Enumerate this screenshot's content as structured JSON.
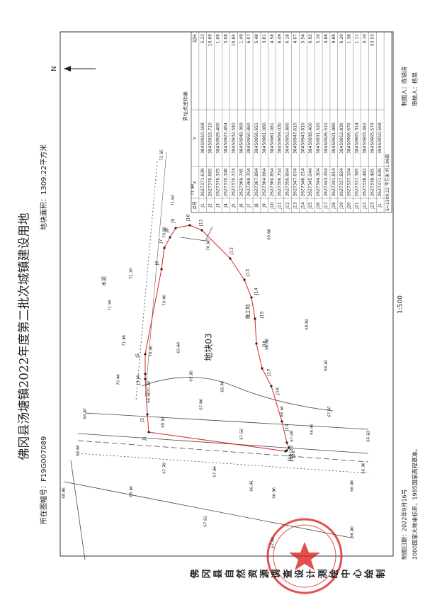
{
  "header": {
    "title": "佛冈县汤塘镇2022年度第二批次城镇建设用地",
    "sheet": "所在图幅号：F19G007089",
    "area": "地块面积：1309.22平方米",
    "scale": "1:500"
  },
  "table": {
    "title": "界址点坐标表",
    "columns": [
      "点号",
      "X",
      "Y",
      "边长"
    ],
    "rows": [
      [
        "J1",
        "2627371.639",
        "38450910.568",
        "5.23"
      ],
      [
        "J2",
        "2627370.665",
        "38450915.710",
        "10.69"
      ],
      [
        "J3",
        "2627370.375",
        "38450926.400",
        "1.06"
      ],
      [
        "J4",
        "2627370.346",
        "38450927.464",
        "5.08"
      ],
      [
        "J5",
        "2627370.374",
        "38450932.540",
        "16.84"
      ],
      [
        "J6",
        "2627369.745",
        "38450949.369",
        "1.49"
      ],
      [
        "J7",
        "2627369.704",
        "38450950.860",
        "6.07"
      ],
      [
        "J8",
        "2627367.894",
        "38450956.651",
        "5.48"
      ],
      [
        "J9",
        "2627364.664",
        "38450961.080",
        "3.81"
      ],
      [
        "J10",
        "2627360.854",
        "38450961.081",
        "4.58"
      ],
      [
        "J11",
        "2627356.754",
        "38450959.030",
        "8.49"
      ],
      [
        "J12",
        "2627350.894",
        "38450952.880",
        "6.18"
      ],
      [
        "J13",
        "2627347.674",
        "38450947.610",
        "4.07"
      ],
      [
        "J14",
        "2627346.214",
        "38450943.810",
        "5.54"
      ],
      [
        "J15",
        "2627345.044",
        "38450938.400",
        "6.92"
      ],
      [
        "J16",
        "2627344.304",
        "38450931.520",
        "5.10"
      ],
      [
        "J17",
        "2627343.354",
        "38450926.510",
        "4.88"
      ],
      [
        "J18",
        "2627341.814",
        "38450921.880",
        "9.89"
      ],
      [
        "J19",
        "2627337.824",
        "38450912.830",
        "6.20"
      ],
      [
        "J20",
        "2627337.104",
        "38450906.670",
        "1.38"
      ],
      [
        "J21",
        "2627337.385",
        "38450905.314",
        "1.11"
      ],
      [
        "J22",
        "2627338.482",
        "38450905.482",
        "0.10"
      ],
      [
        "J23",
        "2627338.485",
        "38450905.579",
        "33.53"
      ],
      [
        "J1",
        "2627371.639",
        "38450910.568"
      ]
    ],
    "area": "S=1309.22 平方米 约1.96亩"
  },
  "map": {
    "north": "N",
    "parcel": "地块03",
    "points": [
      "J1",
      "J2",
      "J3",
      "J4",
      "J5",
      "J6",
      "J7",
      "J8",
      "J9",
      "J10",
      "J11",
      "J12",
      "J13",
      "J14",
      "J15",
      "J16",
      "J17",
      "J18",
      "J19",
      "J20",
      "J21",
      "J22",
      "J23"
    ],
    "labels": [
      "水泥",
      "施工地"
    ],
    "elevations": [
      "72.15",
      "71.39",
      "71.03",
      "71.33",
      "71.54",
      "71.28",
      "70.80",
      "70.18",
      "69.88",
      "70.40",
      "69.60",
      "70.35",
      "68.82",
      "68.88",
      "68.22",
      "70.44",
      "70.20",
      "69.25",
      "68.78",
      "66.50",
      "68.77",
      "67.86",
      "68.13",
      "68.14",
      "67.52",
      "67.77",
      "66.95",
      "67.09",
      "66.23",
      "68.65",
      "67.79",
      "67.26",
      "66.36",
      "66.91",
      "66.96",
      "68.85",
      "68.14",
      "66.08",
      "67.61",
      "66.20",
      "67.02"
    ]
  },
  "footer": {
    "date": "制图日期：2022年9月16号",
    "system": "2000国家大地坐标系，1985国家高程基准。",
    "drafter": "制图人：陈锦涛",
    "reviewer": "审核人：杨昆",
    "institute": "佛冈县自然资源调查设计测绘中心绘制"
  }
}
